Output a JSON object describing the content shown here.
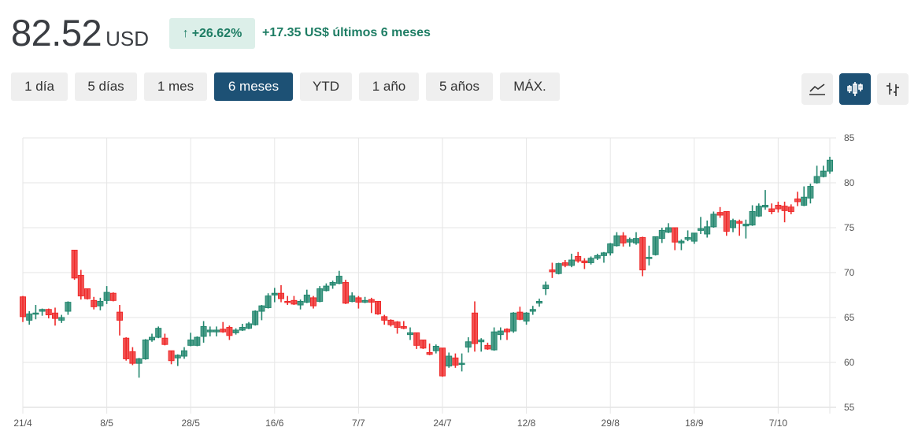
{
  "header": {
    "price": "82.52",
    "currency": "USD",
    "change_arrow": "↑",
    "change_percent": "+26.62%",
    "change_abs": "+17.35 US$",
    "change_period": "últimos 6 meses"
  },
  "ranges": [
    {
      "label": "1 día",
      "active": false
    },
    {
      "label": "5 días",
      "active": false
    },
    {
      "label": "1 mes",
      "active": false
    },
    {
      "label": "6 meses",
      "active": true
    },
    {
      "label": "YTD",
      "active": false
    },
    {
      "label": "1 año",
      "active": false
    },
    {
      "label": "5 años",
      "active": false
    },
    {
      "label": "MÁX.",
      "active": false
    }
  ],
  "chart_types": [
    {
      "icon": "line-chart-icon",
      "active": false
    },
    {
      "icon": "candlestick-chart-icon",
      "active": true
    },
    {
      "icon": "ohlc-bar-chart-icon",
      "active": false
    }
  ],
  "colors": {
    "up": "#23876f",
    "down": "#ef2a2a",
    "active_button": "#1d5175",
    "badge_bg": "#dcefe9",
    "badge_text": "#1e7d64"
  },
  "chart_data": {
    "type": "candlestick",
    "ylim": [
      55,
      85
    ],
    "yticks": [
      55,
      60,
      65,
      70,
      75,
      80,
      85
    ],
    "xticks": [
      "21/4",
      "8/5",
      "28/5",
      "16/6",
      "7/7",
      "24/7",
      "12/8",
      "29/8",
      "18/9",
      "7/10"
    ],
    "grid": true,
    "y_axis_position": "right",
    "ohlc": [
      [
        67.3,
        67.4,
        64.5,
        65.1
      ],
      [
        64.7,
        65.7,
        64.2,
        65.4
      ],
      [
        65.4,
        66.4,
        64.8,
        65.5
      ],
      [
        65.7,
        66.0,
        65.2,
        65.9
      ],
      [
        65.9,
        66.0,
        64.9,
        65.3
      ],
      [
        65.5,
        66.1,
        64.1,
        64.9
      ],
      [
        64.7,
        65.3,
        64.4,
        65.0
      ],
      [
        65.7,
        66.8,
        65.3,
        66.7
      ],
      [
        72.5,
        72.5,
        69.2,
        69.4
      ],
      [
        69.7,
        70.3,
        67.0,
        67.4
      ],
      [
        68.2,
        68.2,
        67.0,
        67.1
      ],
      [
        66.9,
        67.3,
        65.9,
        66.2
      ],
      [
        66.3,
        67.2,
        65.8,
        66.8
      ],
      [
        66.9,
        68.5,
        66.5,
        67.8
      ],
      [
        67.7,
        67.8,
        66.8,
        66.9
      ],
      [
        65.6,
        66.4,
        63.0,
        64.7
      ],
      [
        62.7,
        62.8,
        60.2,
        60.4
      ],
      [
        61.2,
        61.7,
        59.7,
        59.9
      ],
      [
        59.9,
        60.5,
        58.3,
        60.4
      ],
      [
        60.4,
        62.6,
        60.3,
        62.5
      ],
      [
        62.5,
        63.2,
        62.3,
        62.8
      ],
      [
        62.8,
        64.0,
        62.7,
        63.8
      ],
      [
        62.7,
        63.2,
        61.9,
        62.0
      ],
      [
        61.3,
        61.3,
        59.8,
        60.2
      ],
      [
        60.5,
        60.9,
        59.6,
        60.8
      ],
      [
        60.7,
        61.7,
        60.4,
        61.3
      ],
      [
        61.9,
        63.3,
        61.8,
        62.5
      ],
      [
        61.9,
        62.9,
        61.8,
        62.8
      ],
      [
        62.9,
        64.6,
        62.2,
        64.0
      ],
      [
        63.4,
        64.0,
        62.9,
        63.6
      ],
      [
        63.4,
        64.0,
        62.9,
        63.6
      ],
      [
        63.7,
        64.5,
        63.3,
        63.4
      ],
      [
        63.9,
        64.1,
        62.5,
        63.0
      ],
      [
        63.3,
        63.8,
        63.1,
        63.6
      ],
      [
        63.6,
        64.3,
        63.5,
        63.9
      ],
      [
        63.8,
        64.5,
        63.7,
        64.3
      ],
      [
        64.2,
        65.8,
        64.1,
        65.7
      ],
      [
        65.7,
        66.4,
        64.7,
        66.3
      ],
      [
        66.1,
        67.7,
        66.0,
        67.4
      ],
      [
        67.5,
        68.3,
        66.7,
        67.7
      ],
      [
        67.7,
        68.6,
        66.7,
        67.1
      ],
      [
        66.8,
        67.4,
        66.4,
        66.7
      ],
      [
        66.9,
        67.4,
        66.4,
        66.5
      ],
      [
        66.4,
        67.0,
        65.9,
        66.8
      ],
      [
        66.7,
        68.1,
        66.6,
        67.5
      ],
      [
        67.2,
        67.4,
        66.0,
        66.3
      ],
      [
        66.8,
        68.5,
        66.7,
        68.2
      ],
      [
        68.0,
        68.8,
        67.9,
        68.5
      ],
      [
        68.6,
        69.1,
        68.2,
        68.9
      ],
      [
        68.8,
        70.2,
        68.7,
        69.6
      ],
      [
        68.9,
        69.2,
        66.5,
        66.6
      ],
      [
        66.8,
        67.8,
        66.7,
        67.4
      ],
      [
        67.2,
        67.4,
        66.0,
        66.7
      ],
      [
        66.7,
        67.3,
        66.6,
        66.9
      ],
      [
        67.0,
        67.2,
        65.5,
        66.7
      ],
      [
        66.8,
        66.8,
        65.3,
        65.4
      ],
      [
        65.1,
        65.3,
        64.2,
        64.7
      ],
      [
        64.7,
        64.8,
        64.0,
        64.2
      ],
      [
        64.5,
        64.6,
        63.2,
        63.9
      ],
      [
        64.0,
        64.6,
        63.7,
        63.8
      ],
      [
        63.1,
        63.9,
        62.5,
        63.3
      ],
      [
        63.3,
        63.3,
        61.5,
        61.9
      ],
      [
        62.5,
        62.5,
        61.5,
        61.6
      ],
      [
        61.1,
        62.1,
        60.8,
        60.9
      ],
      [
        61.3,
        62.0,
        61.0,
        61.8
      ],
      [
        61.6,
        61.6,
        58.4,
        58.5
      ],
      [
        59.6,
        61.1,
        59.4,
        60.7
      ],
      [
        60.5,
        61.0,
        59.4,
        59.7
      ],
      [
        59.8,
        61.0,
        59.0,
        59.9
      ],
      [
        61.7,
        62.8,
        61.1,
        62.3
      ],
      [
        65.5,
        66.8,
        61.2,
        62.1
      ],
      [
        62.3,
        62.7,
        61.2,
        62.5
      ],
      [
        61.9,
        62.2,
        61.4,
        61.5
      ],
      [
        61.4,
        63.9,
        61.3,
        63.4
      ],
      [
        63.1,
        63.9,
        62.5,
        63.5
      ],
      [
        63.7,
        63.8,
        62.5,
        63.4
      ],
      [
        63.5,
        65.6,
        63.3,
        65.5
      ],
      [
        65.6,
        66.2,
        64.7,
        64.8
      ],
      [
        64.6,
        65.6,
        64.2,
        65.5
      ],
      [
        65.7,
        66.3,
        65.3,
        65.9
      ],
      [
        66.6,
        67.1,
        66.2,
        66.8
      ],
      [
        68.2,
        69.0,
        67.5,
        68.6
      ],
      [
        70.3,
        71.1,
        69.4,
        70.1
      ],
      [
        69.9,
        71.1,
        69.8,
        71.0
      ],
      [
        71.1,
        71.4,
        70.6,
        70.8
      ],
      [
        70.8,
        72.1,
        70.6,
        71.4
      ],
      [
        71.8,
        72.3,
        71.1,
        71.3
      ],
      [
        71.3,
        71.6,
        70.4,
        71.1
      ],
      [
        71.1,
        71.8,
        70.9,
        71.6
      ],
      [
        71.6,
        72.1,
        71.4,
        71.9
      ],
      [
        71.9,
        72.3,
        71.1,
        72.2
      ],
      [
        72.2,
        73.3,
        71.9,
        73.2
      ],
      [
        73.0,
        74.5,
        72.9,
        74.1
      ],
      [
        74.1,
        74.5,
        72.9,
        73.3
      ],
      [
        73.4,
        73.9,
        72.9,
        73.7
      ],
      [
        73.3,
        74.5,
        73.1,
        73.8
      ],
      [
        73.9,
        74.0,
        69.6,
        70.3
      ],
      [
        71.6,
        73.0,
        70.8,
        71.7
      ],
      [
        72.0,
        74.0,
        71.9,
        74.0
      ],
      [
        73.8,
        75.0,
        73.3,
        74.7
      ],
      [
        74.5,
        75.5,
        74.4,
        75.0
      ],
      [
        75.0,
        75.0,
        72.5,
        73.4
      ],
      [
        73.3,
        73.7,
        72.5,
        73.5
      ],
      [
        73.7,
        74.7,
        73.5,
        73.9
      ],
      [
        73.5,
        74.4,
        73.2,
        74.4
      ],
      [
        74.7,
        76.2,
        74.3,
        74.9
      ],
      [
        74.3,
        75.8,
        73.9,
        75.1
      ],
      [
        75.1,
        76.8,
        75.0,
        76.5
      ],
      [
        76.7,
        77.3,
        76.1,
        76.4
      ],
      [
        76.8,
        76.8,
        74.1,
        74.6
      ],
      [
        75.0,
        76.0,
        74.5,
        75.8
      ],
      [
        75.7,
        75.9,
        74.1,
        75.5
      ],
      [
        75.2,
        75.9,
        73.8,
        75.4
      ],
      [
        75.3,
        77.5,
        75.2,
        76.8
      ],
      [
        76.3,
        77.7,
        76.2,
        77.4
      ],
      [
        77.3,
        79.2,
        77.0,
        77.5
      ],
      [
        77.1,
        77.7,
        76.5,
        76.8
      ],
      [
        77.5,
        77.9,
        76.7,
        77.1
      ],
      [
        77.4,
        77.9,
        75.6,
        76.9
      ],
      [
        77.3,
        77.6,
        76.5,
        76.8
      ],
      [
        78.2,
        79.0,
        77.4,
        77.9
      ],
      [
        77.5,
        79.6,
        77.4,
        78.4
      ],
      [
        78.3,
        79.9,
        77.7,
        79.6
      ],
      [
        80.0,
        81.9,
        79.9,
        80.7
      ],
      [
        80.7,
        81.9,
        80.6,
        81.3
      ],
      [
        81.3,
        82.9,
        81.0,
        82.52
      ]
    ]
  }
}
